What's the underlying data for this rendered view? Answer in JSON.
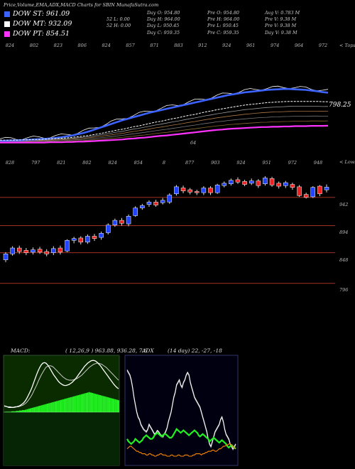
{
  "header": {
    "chart_title": "Price,Volume,EMA,ADX,MACD Charts for SBIN",
    "site": "MunafaSutra.com"
  },
  "legend": [
    {
      "label": "DOW ST: 961.09",
      "color": "#3c63ff"
    },
    {
      "label": "DOW MT: 932.09",
      "color": "#ffffff"
    },
    {
      "label": "DOW PT: 854.51",
      "color": "#ff33ff"
    }
  ],
  "info_blocks": [
    [
      "Day O: 954.80",
      "Day H: 964.00",
      "Day L: 950.45",
      "Day C: 959.35"
    ],
    [
      "Pre  O: 954.80",
      "Pre  H: 964.00",
      "Pre  L: 950.45",
      "Pre  C: 959.35"
    ],
    [
      "Avg V: 0.783 M",
      "Pre  V: 9.38  M",
      "Pre  V: 9.38  M",
      "Day V: 9.38  M"
    ],
    [
      "52  L: 0.00",
      "52  H: 0.00"
    ]
  ],
  "ema_panel": {
    "top_labels": [
      "824",
      "802",
      "823",
      "806",
      "824",
      "857",
      "871",
      "883",
      "912",
      "924",
      "961",
      "974",
      "964",
      "972"
    ],
    "right_label": "< Tops",
    "value_label": "798.25",
    "bottom_label": "64"
  },
  "price_panel": {
    "top_labels": [
      "828",
      "797",
      "821",
      "802",
      "824",
      "854",
      "8",
      "877",
      "903",
      "924",
      "951",
      "972",
      "948"
    ],
    "right_label": "< Lows",
    "level_labels": [
      "942",
      "894",
      "848",
      "796"
    ]
  },
  "panels": {
    "macd_label": "MACD:",
    "macd_params": "( 12,26,9 ) 963.88, 936.28, 7.6",
    "adx_label": "ADX",
    "adx_params": "(14  day) 22,  -27,  -18"
  },
  "chart_data": [
    {
      "type": "line",
      "name": "EMA",
      "x_count": 60,
      "series": [
        {
          "name": "DOW ST",
          "color": "#3c63ff",
          "values": [
            806,
            806,
            807,
            807,
            808,
            809,
            810,
            811,
            812,
            813,
            815,
            817,
            820,
            823,
            827,
            831,
            836,
            842,
            848,
            854,
            860,
            866,
            872,
            877,
            882,
            887,
            892,
            897,
            901,
            905,
            909,
            913,
            917,
            921,
            925,
            929,
            933,
            937,
            941,
            945,
            949,
            953,
            956,
            959,
            962,
            964,
            966,
            968,
            970,
            971,
            972,
            973,
            973,
            972,
            971,
            970,
            968,
            966,
            963,
            961.09
          ]
        },
        {
          "name": "DOW MT",
          "color": "#ffffff",
          "values": [
            808,
            808,
            808,
            808,
            809,
            809,
            810,
            810,
            811,
            812,
            813,
            814,
            815,
            817,
            819,
            821,
            823,
            826,
            829,
            833,
            836,
            840,
            843,
            847,
            851,
            854,
            858,
            862,
            866,
            869,
            873,
            877,
            880,
            884,
            888,
            891,
            895,
            899,
            902,
            906,
            909,
            912,
            915,
            918,
            921,
            923,
            925,
            927,
            929,
            930,
            931,
            932,
            933,
            933,
            933,
            933,
            933,
            933,
            932,
            932.09
          ]
        },
        {
          "name": "DOW PT",
          "color": "#ff33ff",
          "values": [
            800,
            800,
            800,
            800,
            800,
            800,
            800,
            800,
            800,
            801,
            801,
            801,
            802,
            802,
            803,
            803,
            804,
            805,
            806,
            807,
            808,
            809,
            810,
            812,
            813,
            815,
            816,
            818,
            820,
            822,
            823,
            825,
            827,
            829,
            831,
            833,
            835,
            837,
            839,
            841,
            842,
            844,
            845,
            846,
            847,
            848,
            849,
            850,
            850,
            851,
            851,
            852,
            852,
            853,
            853,
            853,
            854,
            854,
            854,
            854.51
          ]
        }
      ]
    },
    {
      "type": "candlestick",
      "name": "Price",
      "ylim": [
        780,
        990
      ],
      "levels": [
        942,
        894,
        848,
        796
      ],
      "candles": [
        {
          "o": 836,
          "c": 846,
          "h": 849,
          "l": 832
        },
        {
          "o": 846,
          "c": 856,
          "h": 859,
          "l": 843
        },
        {
          "o": 856,
          "c": 850,
          "h": 860,
          "l": 846
        },
        {
          "o": 852,
          "c": 848,
          "h": 856,
          "l": 844
        },
        {
          "o": 849,
          "c": 853,
          "h": 857,
          "l": 845
        },
        {
          "o": 854,
          "c": 849,
          "h": 858,
          "l": 846
        },
        {
          "o": 850,
          "c": 846,
          "h": 854,
          "l": 842
        },
        {
          "o": 848,
          "c": 855,
          "h": 859,
          "l": 844
        },
        {
          "o": 856,
          "c": 849,
          "h": 860,
          "l": 845
        },
        {
          "o": 851,
          "c": 869,
          "h": 871,
          "l": 849
        },
        {
          "o": 869,
          "c": 872,
          "h": 875,
          "l": 864
        },
        {
          "o": 873,
          "c": 866,
          "h": 876,
          "l": 862
        },
        {
          "o": 866,
          "c": 876,
          "h": 879,
          "l": 863
        },
        {
          "o": 876,
          "c": 872,
          "h": 880,
          "l": 868
        },
        {
          "o": 874,
          "c": 881,
          "h": 884,
          "l": 870
        },
        {
          "o": 882,
          "c": 895,
          "h": 898,
          "l": 879
        },
        {
          "o": 895,
          "c": 903,
          "h": 906,
          "l": 892
        },
        {
          "o": 903,
          "c": 898,
          "h": 907,
          "l": 894
        },
        {
          "o": 897,
          "c": 910,
          "h": 913,
          "l": 893
        },
        {
          "o": 911,
          "c": 924,
          "h": 927,
          "l": 909
        },
        {
          "o": 924,
          "c": 928,
          "h": 931,
          "l": 921
        },
        {
          "o": 930,
          "c": 934,
          "h": 937,
          "l": 926
        },
        {
          "o": 934,
          "c": 929,
          "h": 938,
          "l": 926
        },
        {
          "o": 933,
          "c": 937,
          "h": 941,
          "l": 930
        },
        {
          "o": 934,
          "c": 946,
          "h": 949,
          "l": 931
        },
        {
          "o": 948,
          "c": 960,
          "h": 963,
          "l": 945
        },
        {
          "o": 958,
          "c": 953,
          "h": 962,
          "l": 949
        },
        {
          "o": 955,
          "c": 951,
          "h": 958,
          "l": 947
        },
        {
          "o": 952,
          "c": 950,
          "h": 955,
          "l": 946
        },
        {
          "o": 950,
          "c": 958,
          "h": 961,
          "l": 946
        },
        {
          "o": 958,
          "c": 950,
          "h": 961,
          "l": 946
        },
        {
          "o": 950,
          "c": 963,
          "h": 965,
          "l": 948
        },
        {
          "o": 962,
          "c": 966,
          "h": 969,
          "l": 959
        },
        {
          "o": 965,
          "c": 971,
          "h": 974,
          "l": 962
        },
        {
          "o": 972,
          "c": 968,
          "h": 976,
          "l": 965
        },
        {
          "o": 969,
          "c": 964,
          "h": 972,
          "l": 961
        },
        {
          "o": 966,
          "c": 970,
          "h": 974,
          "l": 963
        },
        {
          "o": 970,
          "c": 962,
          "h": 973,
          "l": 958
        },
        {
          "o": 965,
          "c": 975,
          "h": 978,
          "l": 962
        },
        {
          "o": 974,
          "c": 963,
          "h": 977,
          "l": 960
        },
        {
          "o": 966,
          "c": 961,
          "h": 969,
          "l": 957
        },
        {
          "o": 962,
          "c": 967,
          "h": 970,
          "l": 958
        },
        {
          "o": 964,
          "c": 959,
          "h": 967,
          "l": 955
        },
        {
          "o": 960,
          "c": 945,
          "h": 963,
          "l": 943
        },
        {
          "o": 947,
          "c": 942,
          "h": 950,
          "l": 940
        },
        {
          "o": 943,
          "c": 959,
          "h": 961,
          "l": 941
        },
        {
          "o": 961,
          "c": 948,
          "h": 963,
          "l": 944
        },
        {
          "o": 954.8,
          "c": 959.35,
          "h": 964,
          "l": 950.45
        }
      ]
    },
    {
      "type": "area",
      "name": "MACD",
      "histogram": [
        0,
        1,
        1,
        1,
        1,
        2,
        2,
        2,
        3,
        3,
        4,
        4,
        5,
        5,
        6,
        7,
        8,
        9,
        10,
        11,
        12,
        13,
        14,
        15,
        16,
        17,
        18,
        19,
        20,
        21,
        22,
        23,
        24,
        25,
        26,
        27,
        28,
        29,
        30,
        31,
        32,
        33,
        34,
        35,
        36,
        37,
        38,
        39,
        40,
        41,
        42,
        43,
        44,
        45,
        46,
        47,
        46,
        45,
        44,
        43,
        42,
        41,
        40,
        39,
        38,
        37,
        36,
        35,
        34,
        33,
        32,
        31,
        30,
        29,
        28
      ],
      "macd_line": [
        12,
        11,
        10,
        9,
        9,
        9,
        9,
        10,
        10,
        11,
        12,
        14,
        16,
        19,
        23,
        28,
        34,
        40,
        47,
        55,
        63,
        71,
        78,
        84,
        89,
        92,
        93,
        92,
        89,
        85,
        80,
        75,
        70,
        66,
        62,
        58,
        55,
        53,
        51,
        50,
        50,
        51,
        52,
        54,
        56,
        59,
        62,
        66,
        70,
        74,
        78,
        82,
        86,
        89,
        92,
        94,
        96,
        97,
        97,
        96,
        94,
        91,
        88,
        84,
        80,
        76,
        72,
        68,
        64,
        60,
        56,
        52,
        49,
        46,
        44
      ],
      "signal_line": [
        11,
        11,
        10,
        10,
        10,
        9,
        9,
        9,
        10,
        10,
        11,
        12,
        13,
        15,
        17,
        20,
        24,
        28,
        33,
        39,
        45,
        51,
        58,
        64,
        70,
        75,
        80,
        84,
        86,
        87,
        87,
        86,
        84,
        81,
        78,
        75,
        72,
        69,
        66,
        64,
        62,
        61,
        60,
        60,
        60,
        61,
        62,
        63,
        65,
        67,
        69,
        72,
        75,
        78,
        81,
        84,
        86,
        88,
        90,
        91,
        92,
        92,
        91,
        90,
        88,
        86,
        84,
        81,
        78,
        75,
        72,
        69,
        66,
        63,
        60
      ]
    },
    {
      "type": "line",
      "name": "ADX",
      "series": [
        {
          "name": "ADX",
          "color": "#ffffff",
          "values": [
            74,
            72,
            70,
            66,
            60,
            52,
            46,
            40,
            36,
            34,
            30,
            28,
            26,
            25,
            24,
            26,
            30,
            28,
            26,
            24,
            22,
            23,
            25,
            24,
            22,
            21,
            20,
            22,
            24,
            27,
            32,
            36,
            40,
            46,
            52,
            56,
            62,
            64,
            66,
            62,
            60,
            64,
            66,
            70,
            72,
            70,
            64,
            60,
            56,
            52,
            50,
            48,
            46,
            44,
            40,
            36,
            32,
            28,
            24,
            18,
            14,
            12,
            16,
            20,
            24,
            26,
            28,
            30,
            34,
            36,
            32,
            26,
            22,
            20,
            18,
            14,
            12,
            10,
            12,
            14
          ]
        },
        {
          "name": "+DI",
          "color": "#22ee22",
          "values": [
            18,
            16,
            15,
            14,
            15,
            16,
            18,
            17,
            16,
            15,
            16,
            17,
            19,
            20,
            21,
            20,
            19,
            18,
            18,
            19,
            21,
            22,
            23,
            22,
            21,
            20,
            21,
            22,
            22,
            21,
            20,
            19,
            19,
            20,
            22,
            24,
            26,
            25,
            24,
            23,
            24,
            25,
            24,
            23,
            22,
            21,
            22,
            23,
            24,
            25,
            24,
            23,
            21,
            20,
            21,
            22,
            21,
            20,
            19,
            18,
            16,
            17,
            18,
            19,
            18,
            17,
            16,
            15,
            16,
            17,
            16,
            15,
            14,
            12,
            11,
            12,
            13,
            12,
            11,
            10
          ]
        },
        {
          "name": "-DI",
          "color": "#ff8800",
          "values": [
            10,
            11,
            12,
            12,
            11,
            10,
            9,
            8,
            8,
            7,
            7,
            6,
            6,
            6,
            5,
            5,
            6,
            6,
            5,
            5,
            4,
            4,
            5,
            5,
            6,
            6,
            5,
            5,
            5,
            4,
            4,
            4,
            5,
            5,
            4,
            4,
            4,
            5,
            5,
            4,
            4,
            4,
            5,
            5,
            5,
            4,
            4,
            4,
            5,
            5,
            6,
            6,
            6,
            6,
            5,
            6,
            6,
            7,
            7,
            8,
            8,
            8,
            9,
            9,
            8,
            8,
            9,
            10,
            10,
            11,
            12,
            12,
            13,
            13,
            14,
            14,
            13,
            12,
            11,
            10
          ]
        }
      ]
    }
  ]
}
